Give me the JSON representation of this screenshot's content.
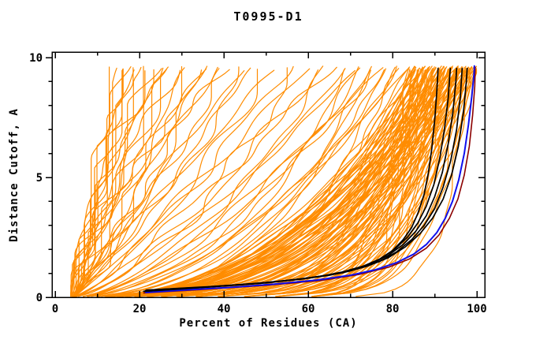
{
  "title": "T0995-D1",
  "chart_data": {
    "type": "line",
    "title": "T0995-D1",
    "xlabel": "Percent of Residues (CA)",
    "ylabel": "Distance Cutoff, A",
    "xlim": [
      0,
      102
    ],
    "ylim": [
      0,
      10.2
    ],
    "grid": false,
    "legend": "none",
    "x_major_ticks": [
      0,
      20,
      40,
      60,
      80,
      100
    ],
    "x_minor_ticks": [
      10,
      30,
      50,
      70,
      90
    ],
    "x_tick_labels": [
      "0",
      "20",
      "40",
      "60",
      "80",
      "100"
    ],
    "y_major_ticks": [
      0,
      5,
      10
    ],
    "y_minor_ticks": [
      1,
      2,
      3,
      4,
      6,
      7,
      8,
      9
    ],
    "y_tick_labels": [
      "0",
      "5",
      "10"
    ],
    "colors": {
      "prediction": "#ff8c00",
      "highlighted": "#000000",
      "best_model": "#1010ee",
      "reference": "#8b0000",
      "frame": "#000000"
    },
    "series": {
      "orange_predictions": {
        "description": "cumulative percent-of-residues-within-cutoff curves for ~150 predictions; each entry is [percent_at_top_cutoff, shape_exponent, seed]; all start near 4% at cutoff 0 and end at cutoff ~9.5",
        "start_percent": 4,
        "top_cutoff": 9.5,
        "left_fan": [
          [
            13,
            1.1,
            1
          ],
          [
            14,
            1.2,
            2
          ],
          [
            15,
            0.95,
            3
          ],
          [
            15.5,
            1.3,
            4
          ],
          [
            16,
            1.05,
            5
          ],
          [
            16.5,
            1.15,
            6
          ],
          [
            17.5,
            0.9,
            7
          ],
          [
            18,
            1.25,
            8
          ],
          [
            20,
            1.0,
            9
          ],
          [
            21,
            1.2,
            10
          ],
          [
            22,
            0.85,
            11
          ],
          [
            23,
            1.1,
            12
          ],
          [
            24,
            0.95,
            13
          ],
          [
            25,
            1.15,
            14
          ],
          [
            26,
            0.9,
            15
          ],
          [
            27,
            1.05,
            16
          ],
          [
            28.5,
            1.2,
            17
          ],
          [
            30,
            0.8,
            18
          ],
          [
            32,
            1.0,
            19
          ],
          [
            33,
            0.9,
            20
          ],
          [
            35,
            1.15,
            21
          ],
          [
            36,
            0.75,
            22
          ],
          [
            38,
            1.05,
            23
          ],
          [
            40,
            0.85,
            24
          ],
          [
            41,
            1.2,
            25
          ],
          [
            43,
            0.95,
            26
          ],
          [
            45,
            0.8,
            27
          ],
          [
            47,
            0.9,
            28
          ],
          [
            50,
            0.7,
            29
          ],
          [
            52,
            1.05,
            30
          ],
          [
            55,
            0.8,
            31
          ],
          [
            57,
            0.6,
            32
          ],
          [
            60,
            0.95,
            33
          ],
          [
            62,
            0.7,
            34
          ],
          [
            64,
            0.55,
            35
          ],
          [
            66,
            0.85,
            36
          ],
          [
            68,
            0.65,
            37
          ],
          [
            70,
            0.5,
            38
          ],
          [
            71,
            0.75,
            39
          ],
          [
            72,
            0.45,
            40
          ],
          [
            73,
            0.6,
            41
          ],
          [
            74,
            0.35,
            42
          ],
          [
            75,
            0.55,
            43
          ],
          [
            76,
            0.42,
            44
          ],
          [
            77,
            0.65,
            45
          ],
          [
            78,
            0.38,
            46
          ],
          [
            79,
            0.5,
            47
          ],
          [
            80,
            0.3,
            48
          ],
          [
            81,
            0.45,
            49
          ],
          [
            82,
            0.35,
            50
          ],
          [
            83,
            0.55,
            51
          ]
        ],
        "right_mass": {
          "count": 100,
          "xend_range": [
            84,
            100
          ],
          "shape_range": [
            0.06,
            0.45
          ],
          "seed_base": 100
        }
      },
      "black_highlighted_curves": [
        [
          [
            21,
            0.25
          ],
          [
            30,
            0.35
          ],
          [
            40,
            0.48
          ],
          [
            50,
            0.62
          ],
          [
            58,
            0.75
          ],
          [
            65,
            0.92
          ],
          [
            70,
            1.1
          ],
          [
            74,
            1.35
          ],
          [
            77,
            1.6
          ],
          [
            80,
            1.95
          ],
          [
            82.5,
            2.4
          ],
          [
            84.5,
            2.9
          ],
          [
            86,
            3.5
          ],
          [
            87.5,
            4.3
          ],
          [
            88.5,
            5.2
          ],
          [
            89.3,
            6.2
          ],
          [
            90,
            7.4
          ],
          [
            90.5,
            8.6
          ],
          [
            90.8,
            9.55
          ]
        ],
        [
          [
            21.2,
            0.25
          ],
          [
            32,
            0.38
          ],
          [
            44,
            0.52
          ],
          [
            54,
            0.68
          ],
          [
            62,
            0.85
          ],
          [
            68,
            1.05
          ],
          [
            73,
            1.3
          ],
          [
            77,
            1.6
          ],
          [
            80.5,
            2.0
          ],
          [
            83.5,
            2.5
          ],
          [
            86,
            3.1
          ],
          [
            88,
            3.8
          ],
          [
            89.8,
            4.7
          ],
          [
            91.2,
            5.8
          ],
          [
            92.3,
            7.0
          ],
          [
            93.2,
            8.3
          ],
          [
            93.7,
            9.55
          ]
        ],
        [
          [
            21.4,
            0.28
          ],
          [
            34,
            0.4
          ],
          [
            46,
            0.55
          ],
          [
            56,
            0.72
          ],
          [
            64,
            0.9
          ],
          [
            70,
            1.12
          ],
          [
            75,
            1.4
          ],
          [
            79,
            1.75
          ],
          [
            82.5,
            2.2
          ],
          [
            85.5,
            2.75
          ],
          [
            88,
            3.4
          ],
          [
            90,
            4.2
          ],
          [
            91.8,
            5.2
          ],
          [
            93.2,
            6.4
          ],
          [
            94.3,
            7.7
          ],
          [
            95,
            9.0
          ],
          [
            95.2,
            9.55
          ]
        ],
        [
          [
            21.6,
            0.3
          ],
          [
            35,
            0.42
          ],
          [
            48,
            0.58
          ],
          [
            58,
            0.76
          ],
          [
            66,
            0.96
          ],
          [
            72,
            1.2
          ],
          [
            77,
            1.5
          ],
          [
            81,
            1.9
          ],
          [
            84.5,
            2.4
          ],
          [
            87.5,
            3.0
          ],
          [
            90,
            3.7
          ],
          [
            92,
            4.6
          ],
          [
            93.8,
            5.7
          ],
          [
            95.2,
            7.0
          ],
          [
            96.1,
            8.4
          ],
          [
            96.5,
            9.55
          ]
        ],
        [
          [
            21.8,
            0.3
          ],
          [
            36,
            0.44
          ],
          [
            50,
            0.6
          ],
          [
            60,
            0.8
          ],
          [
            68,
            1.02
          ],
          [
            74,
            1.3
          ],
          [
            79,
            1.65
          ],
          [
            83,
            2.1
          ],
          [
            86.5,
            2.65
          ],
          [
            89.5,
            3.3
          ],
          [
            92,
            4.1
          ],
          [
            94,
            5.1
          ],
          [
            95.6,
            6.3
          ],
          [
            96.8,
            7.7
          ],
          [
            97.5,
            9.0
          ],
          [
            97.7,
            9.55
          ]
        ]
      ],
      "darkred_curve": [
        [
          21,
          0.18
        ],
        [
          35,
          0.33
        ],
        [
          50,
          0.5
        ],
        [
          63,
          0.7
        ],
        [
          72,
          0.95
        ],
        [
          79,
          1.25
        ],
        [
          84,
          1.6
        ],
        [
          88,
          2.05
        ],
        [
          91,
          2.6
        ],
        [
          93.5,
          3.3
        ],
        [
          95.5,
          4.1
        ],
        [
          97,
          5.1
        ],
        [
          98.2,
          6.3
        ],
        [
          99,
          7.6
        ],
        [
          99.5,
          8.8
        ],
        [
          99.6,
          9.6
        ]
      ],
      "blue_best_curve": [
        [
          21.5,
          0.2
        ],
        [
          30,
          0.3
        ],
        [
          42,
          0.42
        ],
        [
          52,
          0.55
        ],
        [
          62,
          0.72
        ],
        [
          70,
          0.92
        ],
        [
          76,
          1.15
        ],
        [
          81,
          1.45
        ],
        [
          85,
          1.8
        ],
        [
          88,
          2.2
        ],
        [
          90.5,
          2.7
        ],
        [
          92.5,
          3.3
        ],
        [
          94.2,
          4.0
        ],
        [
          95.7,
          4.9
        ],
        [
          97,
          6.0
        ],
        [
          98,
          7.2
        ],
        [
          98.8,
          8.4
        ],
        [
          99.3,
          9.3
        ],
        [
          99.4,
          9.65
        ]
      ]
    }
  }
}
